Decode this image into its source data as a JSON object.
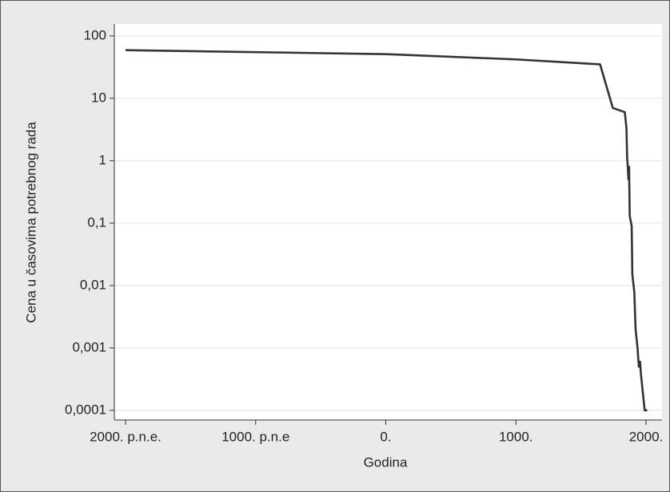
{
  "chart_data": {
    "type": "line",
    "x_label": "Godina",
    "y_label": "Cena u časovima potrebnog rada",
    "x": [
      -2000,
      0,
      1000,
      1647,
      1745,
      1837,
      1850,
      1855,
      1860,
      1865,
      1870,
      1875,
      1890,
      1895,
      1910,
      1920,
      1935,
      1945,
      1955,
      1960,
      1990,
      2010
    ],
    "values": [
      59,
      51,
      42,
      35,
      7,
      6,
      3.3,
      1.1,
      0.8,
      0.5,
      0.8,
      0.13,
      0.09,
      0.015,
      0.008,
      0.002,
      0.001,
      0.0005,
      0.0006,
      0.0004,
      0.0001,
      0.0001
    ],
    "color": "#333333",
    "log_y": true,
    "grid": true,
    "xlim": [
      -2086,
      2123
    ],
    "ylim": [
      7e-05,
      155
    ],
    "xticks": [
      {
        "value": -2000,
        "label": "2000. p.n.e."
      },
      {
        "value": -1000,
        "label": "1000. p.n.e"
      },
      {
        "value": 0,
        "label": "0."
      },
      {
        "value": 1000,
        "label": "1000."
      },
      {
        "value": 2000,
        "label": "2000."
      }
    ],
    "yticks": [
      100,
      10,
      1,
      {
        "value": 0.1,
        "label": "0,1"
      },
      {
        "value": 0.01,
        "label": "0,01"
      },
      {
        "value": 0.001,
        "label": "0,001"
      },
      {
        "value": 0.0001,
        "label": "0,0001"
      }
    ]
  }
}
